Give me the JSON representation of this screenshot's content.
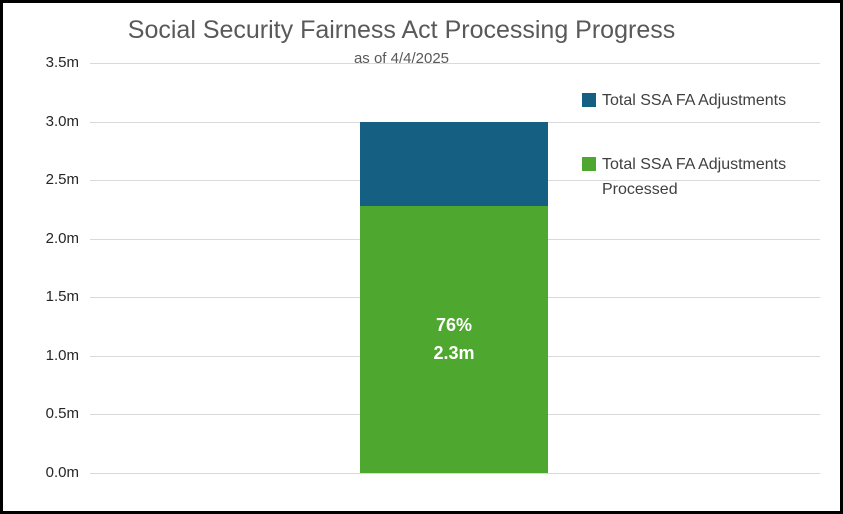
{
  "chart_data": {
    "type": "bar",
    "variant": "stacked-column",
    "title": "Social Security Fairness Act Processing Progress",
    "subtitle": "as of 4/4/2025",
    "y_axis": {
      "min": 0,
      "max": 3.5,
      "tick_step": 0.5,
      "tick_labels": [
        "0.0m",
        "0.5m",
        "1.0m",
        "1.5m",
        "2.0m",
        "2.5m",
        "3.0m",
        "3.5m"
      ],
      "unit": "m"
    },
    "grid": true,
    "total_value": 3.0,
    "segments_bottom_to_top": [
      {
        "name": "Total SSA FA Adjustments Processed",
        "value": 2.28,
        "color": "#4EA72E",
        "data_label_lines": [
          "76%",
          "2.3m"
        ],
        "data_label_color": "#FFFFFF"
      },
      {
        "name": "Total SSA FA Adjustments",
        "value": 0.72,
        "color": "#156082",
        "data_label_lines": [],
        "data_label_color": ""
      }
    ],
    "legend_position": "right-inside",
    "legend": [
      {
        "label": "Total SSA FA Adjustments",
        "color": "#156082"
      },
      {
        "label": "Total SSA FA Adjustments Processed",
        "color": "#4EA72E"
      }
    ],
    "colors": {
      "gridline": "#D9D9D9",
      "title_text": "#595959",
      "axis_text": "#262626",
      "legend_text": "#404040",
      "frame_border": "#000000",
      "background": "#FFFFFF"
    }
  }
}
